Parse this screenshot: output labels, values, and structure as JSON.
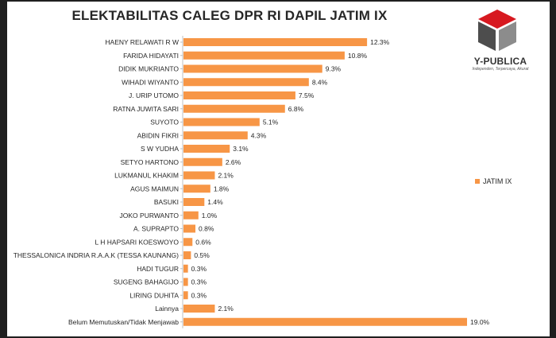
{
  "chart_data": {
    "type": "bar",
    "orientation": "horizontal",
    "title": "ELEKTABILITAS CALEG DPR RI DAPIL JATIM IX",
    "series": [
      {
        "name": "JATIM IX",
        "color": "#f79646"
      }
    ],
    "categories": [
      "HAENY RELAWATI R W",
      "FARIDA HIDAYATI",
      "DIDIK MUKRIANTO",
      "WIHADI WIYANTO",
      "J. URIP UTOMO",
      "RATNA JUWITA SARI",
      "SUYOTO",
      "ABIDIN FIKRI",
      "S W YUDHA",
      "SETYO HARTONO",
      "LUKMANUL KHAKIM",
      "AGUS MAIMUN",
      "BASUKI",
      "JOKO PURWANTO",
      "A. SUPRAPTO",
      "L H HAPSARI KOESWOYO",
      "THESSALONICA INDRIA R.A.A.K (TESSA KAUNANG)",
      "HADI TUGUR",
      "SUGENG BAHAGIJO",
      "LIRING DUHITA",
      "Lainnya",
      "Belum Memutuskan/Tidak Menjawab"
    ],
    "values": [
      12.3,
      10.8,
      9.3,
      8.4,
      7.5,
      6.8,
      5.1,
      4.3,
      3.1,
      2.6,
      2.1,
      1.8,
      1.4,
      1.0,
      0.8,
      0.6,
      0.5,
      0.3,
      0.3,
      0.3,
      2.1,
      19.0
    ],
    "value_labels": [
      "12.3%",
      "10.8%",
      "9.3%",
      "8.4%",
      "7.5%",
      "6.8%",
      "5.1%",
      "4.3%",
      "3.1%",
      "2.6%",
      "2.1%",
      "1.8%",
      "1.4%",
      "1.0%",
      "0.8%",
      "0.6%",
      "0.5%",
      "0.3%",
      "0.3%",
      "0.3%",
      "2.1%",
      "19.0%"
    ],
    "xlim": [
      0,
      19.0
    ],
    "xlabel": "",
    "ylabel": "",
    "grid": false,
    "legend": "right"
  },
  "brand": {
    "name": "Y-PUBLICA",
    "tagline": "Independen, Terpercaya, Akurat",
    "colors": {
      "red": "#d71920",
      "dark": "#4d4d4d",
      "gray": "#8c8c8c"
    }
  }
}
